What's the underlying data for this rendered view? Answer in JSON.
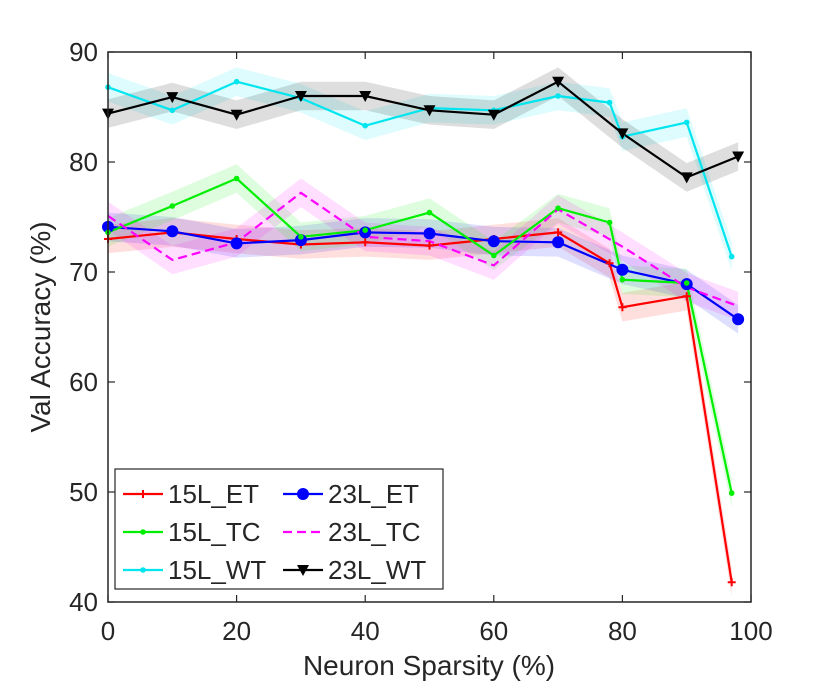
{
  "chart_data": {
    "type": "line",
    "title": "",
    "xlabel": "Neuron Sparsity (%)",
    "ylabel": "Val Accuracy (%)",
    "xlim": [
      0,
      100
    ],
    "ylim": [
      40,
      90
    ],
    "xticks": [
      "0",
      "20",
      "40",
      "60",
      "80",
      "100"
    ],
    "yticks": [
      "40",
      "50",
      "60",
      "70",
      "80",
      "90"
    ],
    "grid": false,
    "legend_position": "bottom-left",
    "series": [
      {
        "name": "15L_ET",
        "color": "#ff0000",
        "dash": false,
        "marker": "plus",
        "x": [
          0,
          10,
          20,
          30,
          40,
          50,
          60,
          70,
          78,
          80,
          90,
          97
        ],
        "values": [
          73.0,
          73.6,
          73.0,
          72.5,
          72.7,
          72.4,
          73.0,
          73.6,
          70.8,
          66.8,
          67.8,
          41.8
        ]
      },
      {
        "name": "23L_ET",
        "color": "#0000ff",
        "dash": false,
        "marker": "circle",
        "x": [
          0,
          10,
          20,
          30,
          40,
          50,
          60,
          70,
          80,
          90,
          98
        ],
        "values": [
          74.1,
          73.7,
          72.6,
          72.9,
          73.6,
          73.5,
          72.8,
          72.7,
          70.2,
          68.9,
          65.7
        ]
      },
      {
        "name": "15L_TC",
        "color": "#00ee00",
        "dash": false,
        "marker": "dot",
        "x": [
          0,
          10,
          20,
          30,
          40,
          50,
          60,
          70,
          78,
          80,
          90,
          97
        ],
        "values": [
          73.6,
          76.0,
          78.5,
          73.2,
          73.8,
          75.4,
          71.5,
          75.8,
          74.5,
          69.3,
          69.0,
          49.9
        ]
      },
      {
        "name": "23L_TC",
        "color": "#ff00ff",
        "dash": true,
        "marker": "none",
        "x": [
          0,
          10,
          20,
          30,
          40,
          50,
          60,
          70,
          80,
          90,
          98
        ],
        "values": [
          75.1,
          71.1,
          72.7,
          77.2,
          73.2,
          72.8,
          70.6,
          75.7,
          72.3,
          68.6,
          66.9
        ]
      },
      {
        "name": "15L_WT",
        "color": "#00e5ee",
        "dash": false,
        "marker": "dot",
        "x": [
          0,
          10,
          20,
          30,
          40,
          50,
          60,
          70,
          78,
          80,
          90,
          97
        ],
        "values": [
          86.8,
          84.7,
          87.3,
          85.8,
          83.3,
          84.9,
          84.7,
          86.0,
          85.4,
          82.3,
          83.6,
          71.4
        ]
      },
      {
        "name": "23L_WT",
        "color": "#000000",
        "dash": false,
        "marker": "triangle-down",
        "x": [
          0,
          10,
          20,
          30,
          40,
          50,
          60,
          70,
          80,
          90,
          98
        ],
        "values": [
          84.4,
          85.9,
          84.3,
          86.0,
          86.0,
          84.7,
          84.3,
          87.3,
          82.6,
          78.6,
          80.5
        ]
      }
    ]
  }
}
